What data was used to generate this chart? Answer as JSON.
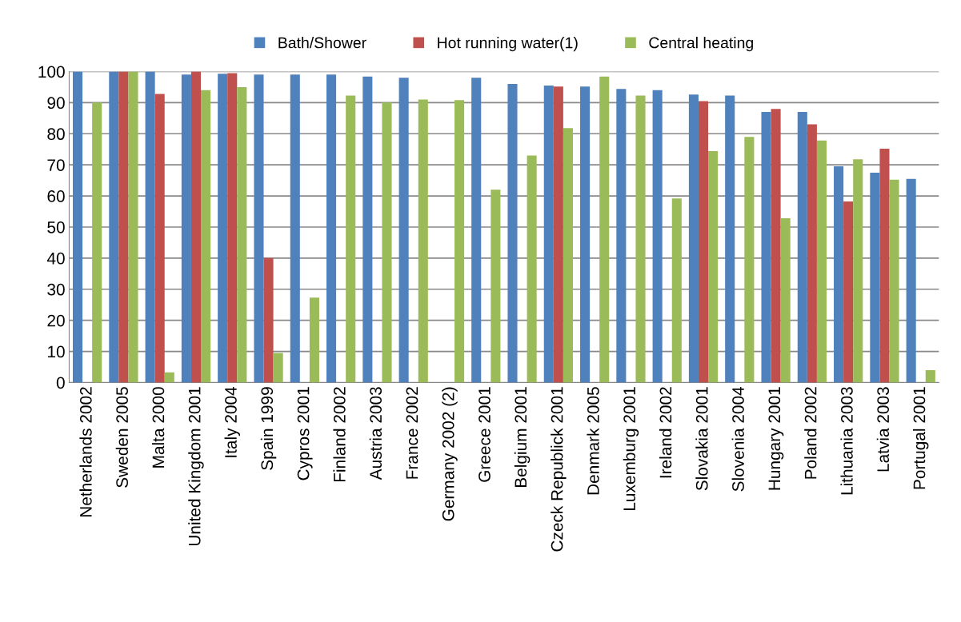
{
  "chart_data": {
    "type": "bar",
    "categories": [
      "Netherlands 2002",
      "Sweden 2005",
      "Malta 2000",
      "United Kingdom 2001",
      "Italy 2004",
      "Spain 1999",
      "Cypros 2001",
      "Finland 2002",
      "Austria 2003",
      "France 2002",
      "Germany 2002 (2)",
      "Greece 2001",
      "Belgium 2001",
      "Czeck Republick 2001",
      "Denmark 2005",
      "Luxemburg 2001",
      "Ireland 2002",
      "Slovakia 2001",
      "Slovenia 2004",
      "Hungary 2001",
      "Poland 2002",
      "Lithuania 2003",
      "Latvia 2003",
      "Portugal 2001"
    ],
    "series": [
      {
        "name": "Bath/Shower",
        "color": "#4f81bd",
        "values": [
          100,
          100,
          100,
          99,
          99.3,
          99,
          99,
          99,
          98.4,
          98,
          null,
          98,
          96,
          95.5,
          95.2,
          94.4,
          94,
          92.6,
          92.3,
          87,
          87,
          69.5,
          67.5,
          65.5
        ]
      },
      {
        "name": "Hot running water(1)",
        "color": "#c0504d",
        "values": [
          null,
          100,
          92.8,
          100,
          99.5,
          40,
          null,
          null,
          null,
          null,
          null,
          null,
          null,
          95.2,
          null,
          null,
          null,
          90.5,
          null,
          88,
          83,
          58.2,
          75.2,
          null
        ]
      },
      {
        "name": "Central heating",
        "color": "#9bbb59",
        "values": [
          90,
          100,
          3.3,
          94,
          95,
          9.5,
          27.3,
          92.3,
          90,
          91,
          90.8,
          62,
          73,
          81.8,
          98.4,
          92.3,
          59.2,
          74.4,
          79,
          52.8,
          77.8,
          71.8,
          65.2,
          4
        ]
      }
    ],
    "ylim": [
      0,
      100
    ],
    "yticks": [
      0,
      10,
      20,
      30,
      40,
      50,
      60,
      70,
      80,
      90,
      100
    ],
    "grid": "y",
    "legend": "top"
  }
}
